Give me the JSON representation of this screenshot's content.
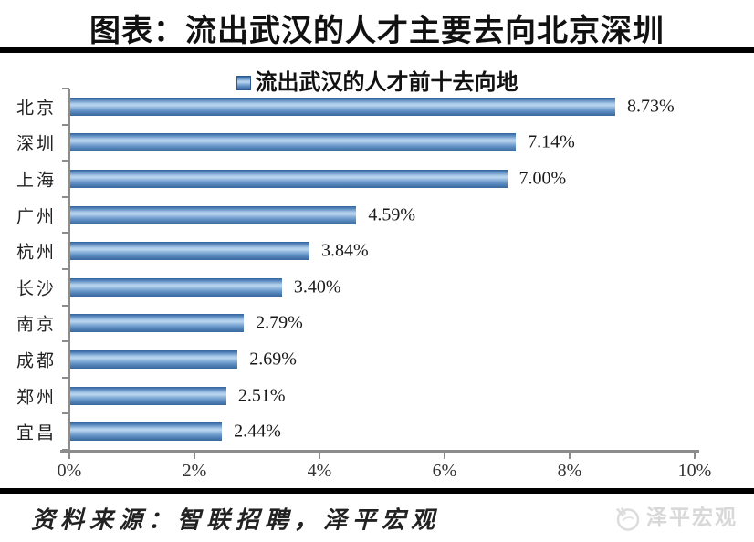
{
  "page": {
    "title": "图表：流出武汉的人才主要去向北京深圳",
    "source_text": "资料来源：智联招聘，泽平宏观",
    "watermark": "泽平宏观"
  },
  "chart_data": {
    "type": "bar",
    "orientation": "horizontal",
    "title": "流出武汉的人才前十去向地",
    "categories": [
      "北京",
      "深圳",
      "上海",
      "广州",
      "杭州",
      "长沙",
      "南京",
      "成都",
      "郑州",
      "宜昌"
    ],
    "values": [
      8.73,
      7.14,
      7.0,
      4.59,
      3.84,
      3.4,
      2.79,
      2.69,
      2.51,
      2.44
    ],
    "value_labels": [
      "8.73%",
      "7.14%",
      "7.00%",
      "4.59%",
      "3.84%",
      "3.40%",
      "2.79%",
      "2.69%",
      "2.51%",
      "2.44%"
    ],
    "xlabel": "",
    "ylabel": "",
    "xlim": [
      0,
      10
    ],
    "x_ticks": [
      "0%",
      "2%",
      "4%",
      "6%",
      "8%",
      "10%"
    ],
    "legend_position": "top",
    "grid": false,
    "bar_color": "#4f81bd",
    "axis_color": "#8c8c8c",
    "value_label_color": "#1a1a1a"
  }
}
